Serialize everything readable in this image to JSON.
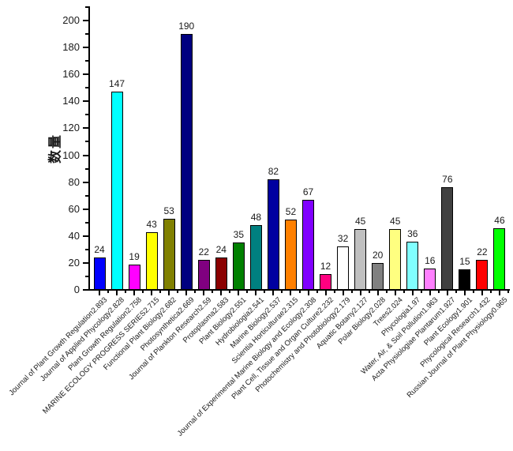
{
  "chart_data": {
    "type": "bar",
    "title": "",
    "xlabel": "",
    "ylabel": "数量",
    "ylim": [
      0,
      210
    ],
    "yticks": [
      0,
      20,
      40,
      60,
      80,
      100,
      120,
      140,
      160,
      180,
      200
    ],
    "ytick_labels": [
      "0",
      "20",
      "40",
      "60",
      "80",
      "100",
      "120",
      "140",
      "160",
      "180",
      "200"
    ],
    "minor_tick_step": 10,
    "grid": false,
    "legend": null,
    "categories": [
      "Journal of Plant Growth Regulation2.893",
      "Journal of Applied Phycology2.828",
      "Plant Growth Regulation2.758",
      "MARINE ECOLOGY PROGRESS SERIES2.715",
      "Functional Plant Biology2.682",
      "Photosynthetica2.669",
      "Journal of Plankton Research2.59",
      "Protoplasma2.583",
      "Plant Biology2.551",
      "Hydrobiologia2.541",
      "Marine Biology2.537",
      "Scientia Horticulturae2.315",
      "Journal of Experimental Marine Biology and Ecology2.308",
      "Plant Cell, Tissue and Organ Culture2.232",
      "Photochemistry and Photobiology2.179",
      "Aquatic Botany2.127",
      "Polar Biology2.028",
      "Trees2.024",
      "Phycologia1.97",
      "Water, Air, & Soil Pollution1.963",
      "Acta Physiologiae Plantarum1.927",
      "Plant Ecology1.901",
      "Phycological Research1.432",
      "Russian Journal of Plant Physiology0.965"
    ],
    "values": [
      24,
      147,
      19,
      43,
      53,
      190,
      22,
      24,
      35,
      48,
      82,
      52,
      67,
      12,
      32,
      45,
      20,
      45,
      36,
      16,
      76,
      15,
      22,
      46
    ],
    "bar_colors": [
      "#0000FF",
      "#00FFFF",
      "#FF00FF",
      "#FFFF00",
      "#808000",
      "#000080",
      "#800080",
      "#8B0000",
      "#008000",
      "#008080",
      "#0000A0",
      "#FF8000",
      "#8000FF",
      "#FF0080",
      "#FFFFFF",
      "#C0C0C0",
      "#808080",
      "#FFFF80",
      "#80FFFF",
      "#FF80FF",
      "#404040",
      "#000000",
      "#FF0000",
      "#00FF00"
    ],
    "bar_border_color": "#000000",
    "axis_color": "#000000"
  }
}
